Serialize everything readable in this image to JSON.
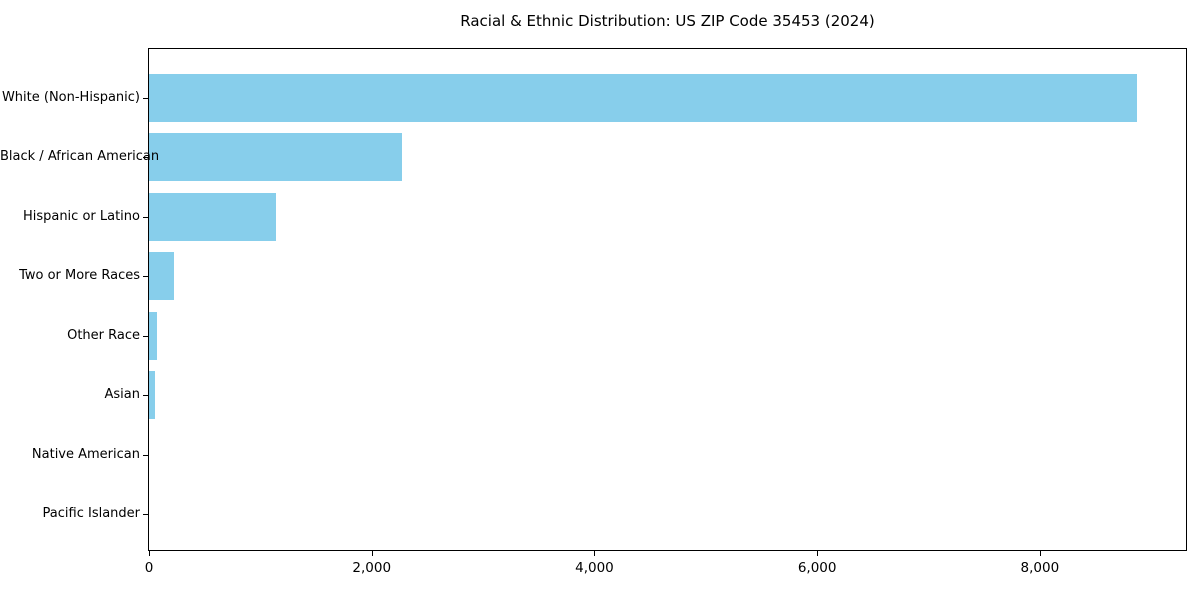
{
  "chart_data": {
    "type": "bar",
    "orientation": "horizontal",
    "title": "Racial & Ethnic Distribution: US ZIP Code 35453 (2024)",
    "categories": [
      "White (Non-Hispanic)",
      "Black / African American",
      "Hispanic or Latino",
      "Two or More Races",
      "Other Race",
      "Asian",
      "Native American",
      "Pacific Islander"
    ],
    "values": [
      8870,
      2270,
      1140,
      225,
      72,
      54,
      0,
      0
    ],
    "xlabel": "",
    "ylabel": "",
    "xlim": [
      0,
      9330
    ],
    "x_ticks": [
      0,
      2000,
      4000,
      6000,
      8000
    ],
    "x_tick_labels": [
      "0",
      "2,000",
      "4,000",
      "6,000",
      "8,000"
    ],
    "bar_color": "#87CEEB",
    "axis_color": "#000000",
    "text_color": "#000000",
    "background_color": "#ffffff",
    "grid": false,
    "legend": false
  }
}
